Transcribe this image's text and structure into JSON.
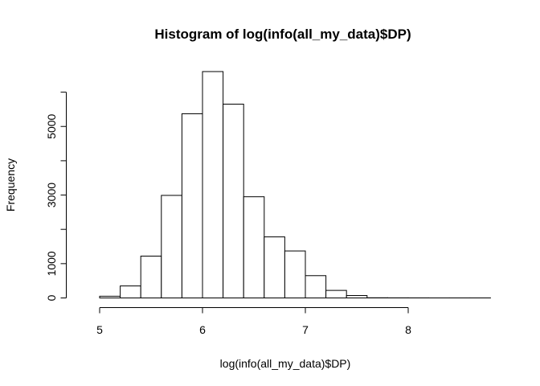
{
  "chart_data": {
    "type": "bar",
    "title": "Histogram of log(info(all_my_data)$DP)",
    "xlabel": "log(info(all_my_data)$DP)",
    "ylabel": "Frequency",
    "bin_width": 0.2,
    "bins": [
      {
        "x0": 5.0,
        "x1": 5.2,
        "value": 50
      },
      {
        "x0": 5.2,
        "x1": 5.4,
        "value": 350
      },
      {
        "x0": 5.4,
        "x1": 5.6,
        "value": 1220
      },
      {
        "x0": 5.6,
        "x1": 5.8,
        "value": 2990
      },
      {
        "x0": 5.8,
        "x1": 6.0,
        "value": 5370
      },
      {
        "x0": 6.0,
        "x1": 6.2,
        "value": 6600
      },
      {
        "x0": 6.2,
        "x1": 6.4,
        "value": 5650
      },
      {
        "x0": 6.4,
        "x1": 6.6,
        "value": 2950
      },
      {
        "x0": 6.6,
        "x1": 6.8,
        "value": 1780
      },
      {
        "x0": 6.8,
        "x1": 7.0,
        "value": 1370
      },
      {
        "x0": 7.0,
        "x1": 7.2,
        "value": 650
      },
      {
        "x0": 7.2,
        "x1": 7.4,
        "value": 220
      },
      {
        "x0": 7.4,
        "x1": 7.6,
        "value": 70
      },
      {
        "x0": 7.6,
        "x1": 7.8,
        "value": 5
      },
      {
        "x0": 7.8,
        "x1": 8.0,
        "value": 3
      },
      {
        "x0": 8.0,
        "x1": 8.2,
        "value": 2
      },
      {
        "x0": 8.2,
        "x1": 8.4,
        "value": 1
      },
      {
        "x0": 8.4,
        "x1": 8.6,
        "value": 1
      },
      {
        "x0": 8.6,
        "x1": 8.8,
        "value": 1
      }
    ],
    "xlim": [
      4.8,
      8.8
    ],
    "ylim": [
      0,
      6600
    ],
    "x_ticks": [
      "5",
      "6",
      "7",
      "8"
    ],
    "y_ticks": [
      "0",
      "1000",
      "3000",
      "5000"
    ],
    "y_tick_values": [
      0,
      1000,
      2000,
      3000,
      4000,
      5000,
      6000
    ],
    "grid": false,
    "bar_fill": "#ffffff",
    "bar_stroke": "#000000"
  }
}
